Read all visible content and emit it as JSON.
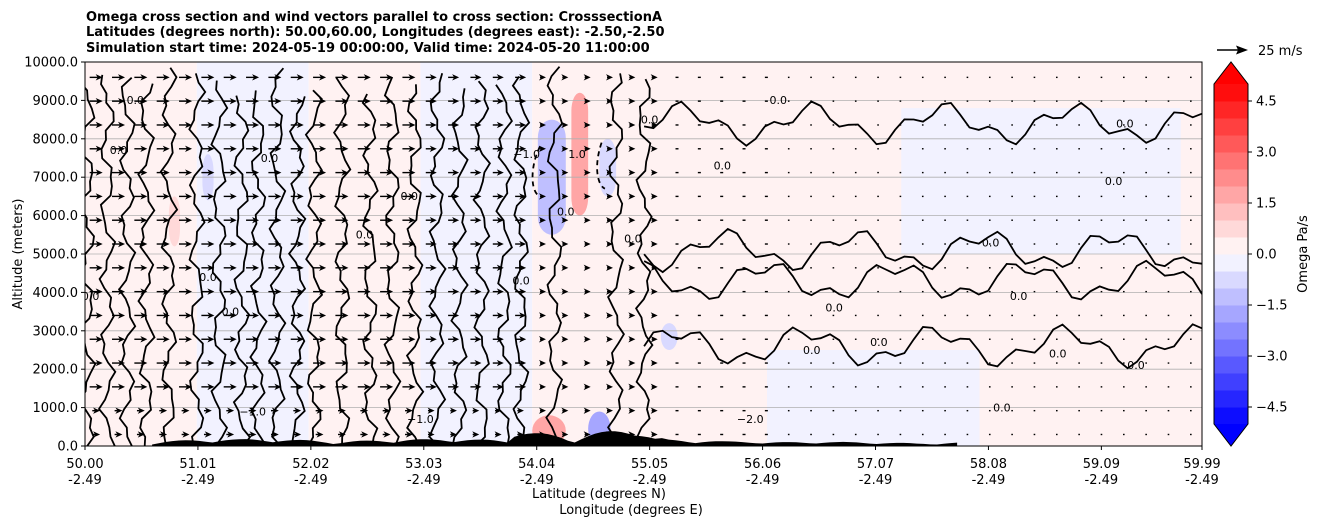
{
  "chart_data": {
    "type": "heatmap",
    "title_lines": [
      "Omega cross section and wind vectors parallel to cross section: CrosssectionA",
      "Latitudes (degrees north): 50.00,60.00, Longitudes (degrees east): -2.50,-2.50",
      "Simulation start time: 2024-05-19 00:00:00, Valid time: 2024-05-20 11:00:00"
    ],
    "ylabel": "Altitude (meters)",
    "xlabel_lines": [
      "Latitude (degrees N)",
      "Longitude (degrees E)"
    ],
    "ylim": [
      0,
      10000
    ],
    "xlim": [
      50.0,
      59.99
    ],
    "y_ticks": [
      {
        "value": 0,
        "label": "0.0"
      },
      {
        "value": 1000,
        "label": "1000.0"
      },
      {
        "value": 2000,
        "label": "2000.0"
      },
      {
        "value": 3000,
        "label": "3000.0"
      },
      {
        "value": 4000,
        "label": "4000.0"
      },
      {
        "value": 5000,
        "label": "5000.0"
      },
      {
        "value": 6000,
        "label": "6000.0"
      },
      {
        "value": 7000,
        "label": "7000.0"
      },
      {
        "value": 8000,
        "label": "8000.0"
      },
      {
        "value": 9000,
        "label": "9000.0"
      },
      {
        "value": 10000,
        "label": "10000.0"
      }
    ],
    "x_ticks": [
      {
        "value": 50.0,
        "lat": "50.00",
        "lon": "-2.49"
      },
      {
        "value": 51.01,
        "lat": "51.01",
        "lon": "-2.49"
      },
      {
        "value": 52.02,
        "lat": "52.02",
        "lon": "-2.49"
      },
      {
        "value": 53.03,
        "lat": "53.03",
        "lon": "-2.49"
      },
      {
        "value": 54.04,
        "lat": "54.04",
        "lon": "-2.49"
      },
      {
        "value": 55.05,
        "lat": "55.05",
        "lon": "-2.49"
      },
      {
        "value": 56.06,
        "lat": "56.06",
        "lon": "-2.49"
      },
      {
        "value": 57.07,
        "lat": "57.07",
        "lon": "-2.49"
      },
      {
        "value": 58.08,
        "lat": "58.08",
        "lon": "-2.49"
      },
      {
        "value": 59.09,
        "lat": "59.09",
        "lon": "-2.49"
      },
      {
        "value": 59.99,
        "lat": "59.99",
        "lon": "-2.49"
      }
    ],
    "horizontal_grid": true,
    "colorbar": {
      "label": "Omega Pa/s",
      "range": [
        -5.0,
        5.0
      ],
      "levels": [
        -5.0,
        -4.5,
        -4.0,
        -3.5,
        -3.0,
        -2.5,
        -2.0,
        -1.5,
        -1.0,
        -0.5,
        0.0,
        0.5,
        1.0,
        1.5,
        2.0,
        2.5,
        3.0,
        3.5,
        4.0,
        4.5,
        5.0
      ],
      "tick_labels": [
        {
          "value": 4.5,
          "label": "4.5"
        },
        {
          "value": 3.0,
          "label": "3.0"
        },
        {
          "value": 1.5,
          "label": "1.5"
        },
        {
          "value": 0.0,
          "label": "0.0"
        },
        {
          "value": -1.5,
          "label": "−1.5"
        },
        {
          "value": -3.0,
          "label": "−3.0"
        },
        {
          "value": -4.5,
          "label": "−4.5"
        }
      ],
      "low_color": "#0000ff",
      "high_color": "#ff0000",
      "mid_color": "#ffffff"
    },
    "quiver_key": {
      "label": "25 m/s",
      "speed": 25
    },
    "omega_regions": [
      {
        "x0": 50.0,
        "x1": 51.0,
        "y0": 0,
        "y1": 10000,
        "value": 0.25
      },
      {
        "x0": 51.0,
        "x1": 52.0,
        "y0": 0,
        "y1": 10000,
        "value": -0.2
      },
      {
        "x0": 52.0,
        "x1": 53.0,
        "y0": 0,
        "y1": 10000,
        "value": 0.2
      },
      {
        "x0": 53.0,
        "x1": 54.0,
        "y0": 0,
        "y1": 10000,
        "value": -0.3
      },
      {
        "x0": 54.0,
        "x1": 56.1,
        "y0": 0,
        "y1": 10000,
        "value": 0.3
      },
      {
        "x0": 56.1,
        "x1": 58.0,
        "y0": 0,
        "y1": 2500,
        "value": -0.25
      },
      {
        "x0": 56.1,
        "x1": 60.0,
        "y0": 2500,
        "y1": 10000,
        "value": 0.2
      },
      {
        "x0": 58.0,
        "x1": 60.0,
        "y0": 0,
        "y1": 2500,
        "value": 0.15
      },
      {
        "x0": 57.3,
        "x1": 59.8,
        "y0": 5000,
        "y1": 8800,
        "value": -0.25
      },
      {
        "x0": 54.05,
        "x1": 54.3,
        "y0": 5500,
        "y1": 8500,
        "value": -1.3
      },
      {
        "x0": 54.35,
        "x1": 54.5,
        "y0": 6000,
        "y1": 9200,
        "value": 1.6
      },
      {
        "x0": 54.6,
        "x1": 54.75,
        "y0": 6500,
        "y1": 8000,
        "value": -0.8
      },
      {
        "x0": 50.75,
        "x1": 50.85,
        "y0": 5200,
        "y1": 6500,
        "value": 0.9
      },
      {
        "x0": 51.05,
        "x1": 51.15,
        "y0": 6400,
        "y1": 7600,
        "value": -0.7
      },
      {
        "x0": 54.0,
        "x1": 54.3,
        "y0": 0,
        "y1": 800,
        "value": 1.6
      },
      {
        "x0": 54.5,
        "x1": 54.7,
        "y0": 0,
        "y1": 900,
        "value": -2.0
      },
      {
        "x0": 55.15,
        "x1": 55.3,
        "y0": 2500,
        "y1": 3200,
        "value": -1.0
      }
    ],
    "contour_labels": [
      {
        "text": "0.0",
        "x": 50.05,
        "y": 3800
      },
      {
        "text": "0.0",
        "x": 50.3,
        "y": 7600
      },
      {
        "text": "0.0",
        "x": 50.45,
        "y": 8900
      },
      {
        "text": "0.0",
        "x": 51.1,
        "y": 4300
      },
      {
        "text": "0.0",
        "x": 51.3,
        "y": 3400
      },
      {
        "text": "0.0",
        "x": 51.65,
        "y": 7400
      },
      {
        "text": "0.0",
        "x": 52.5,
        "y": 5400
      },
      {
        "text": "0.0",
        "x": 52.9,
        "y": 6400
      },
      {
        "text": "0.0",
        "x": 53.9,
        "y": 4200
      },
      {
        "text": "−1.0",
        "x": 53.95,
        "y": 7500
      },
      {
        "text": "1.0",
        "x": 54.4,
        "y": 7500
      },
      {
        "text": "0.0",
        "x": 54.3,
        "y": 6000
      },
      {
        "text": "0.0",
        "x": 54.9,
        "y": 5300
      },
      {
        "text": "0.0",
        "x": 55.05,
        "y": 8400
      },
      {
        "text": "0.0",
        "x": 55.7,
        "y": 7200
      },
      {
        "text": "0.0",
        "x": 56.2,
        "y": 8900
      },
      {
        "text": "0.0",
        "x": 56.5,
        "y": 2400
      },
      {
        "text": "0.0",
        "x": 56.7,
        "y": 3500
      },
      {
        "text": "0.0",
        "x": 57.1,
        "y": 2600
      },
      {
        "text": "0.0",
        "x": 58.1,
        "y": 5200
      },
      {
        "text": "0.0",
        "x": 58.35,
        "y": 3800
      },
      {
        "text": "0.0",
        "x": 58.7,
        "y": 2300
      },
      {
        "text": "0.0",
        "x": 59.2,
        "y": 6800
      },
      {
        "text": "0.0",
        "x": 59.3,
        "y": 8300
      },
      {
        "text": "0.0",
        "x": 59.4,
        "y": 2000
      },
      {
        "text": "0.0",
        "x": 58.2,
        "y": 900
      },
      {
        "text": "−1.0",
        "x": 51.5,
        "y": 800
      },
      {
        "text": "−1.0",
        "x": 53.0,
        "y": 600
      },
      {
        "text": "−2.0",
        "x": 55.95,
        "y": 600
      }
    ]
  }
}
